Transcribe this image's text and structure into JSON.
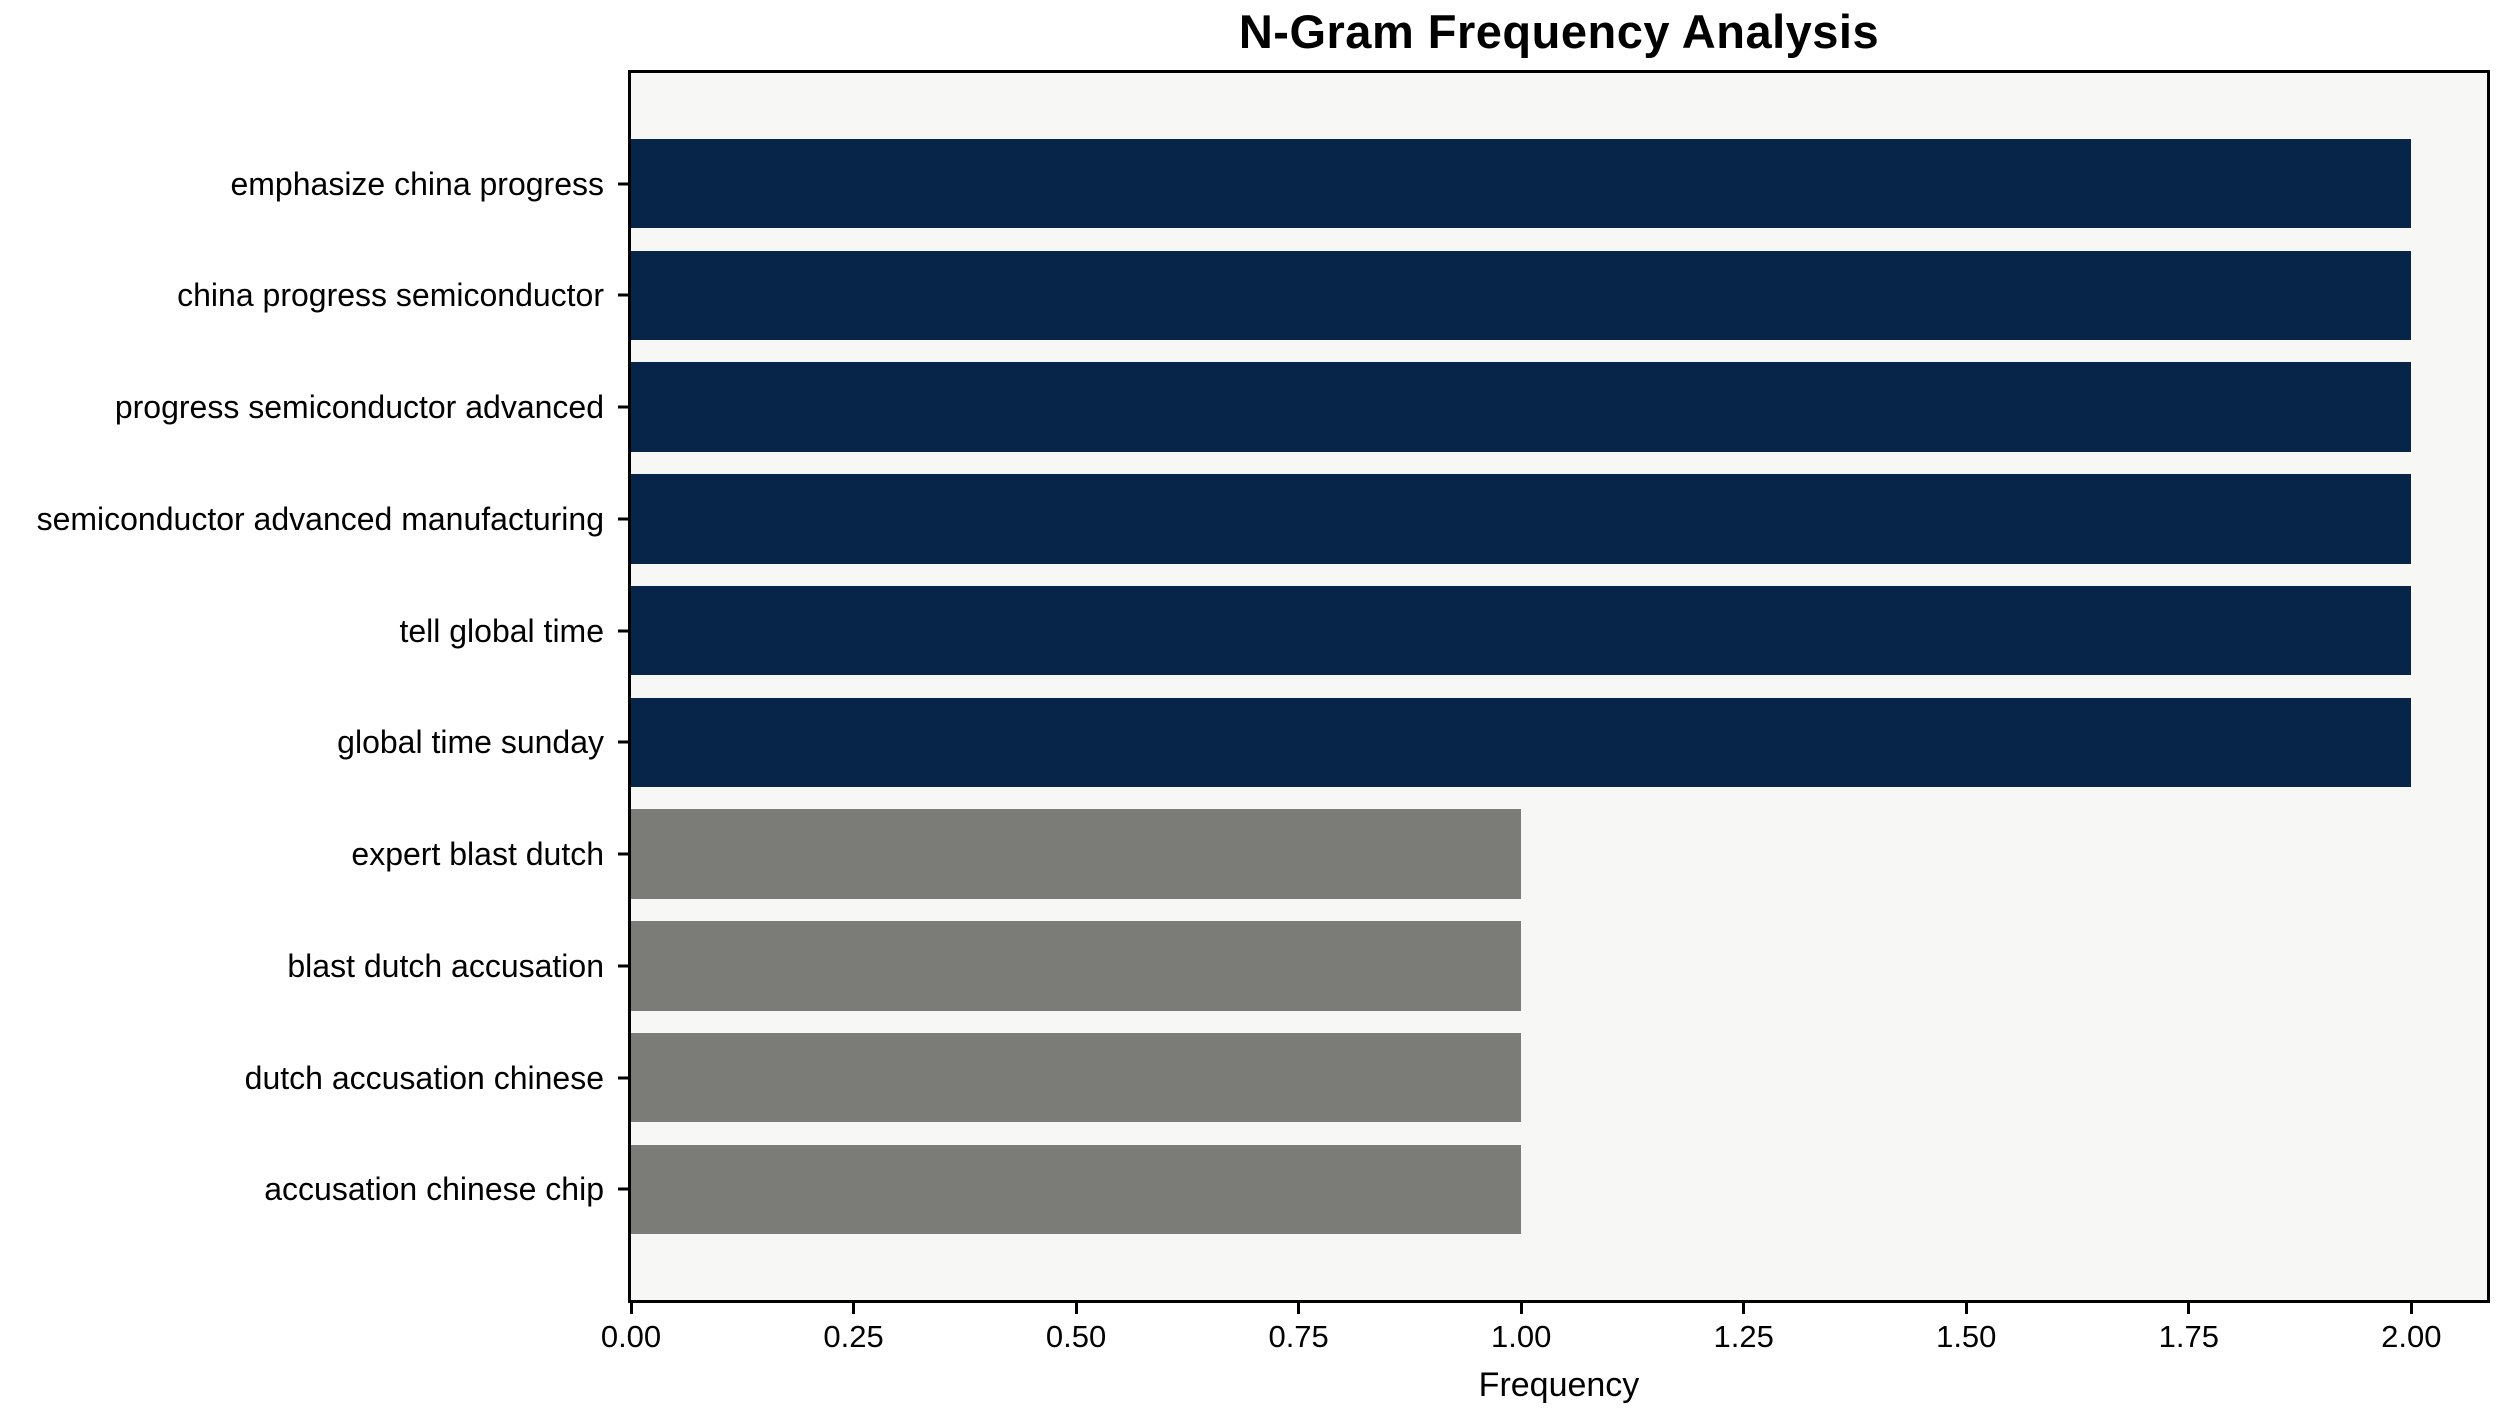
{
  "chart_data": {
    "type": "bar",
    "orientation": "horizontal",
    "title": "N-Gram Frequency Analysis",
    "xlabel": "Frequency",
    "ylabel": "",
    "categories": [
      "emphasize china progress",
      "china progress semiconductor",
      "progress semiconductor advanced",
      "semiconductor advanced manufacturing",
      "tell global time",
      "global time sunday",
      "expert blast dutch",
      "blast dutch accusation",
      "dutch accusation chinese",
      "accusation chinese chip"
    ],
    "values": [
      2,
      2,
      2,
      2,
      2,
      2,
      1,
      1,
      1,
      1
    ],
    "bar_colors": [
      "#072548",
      "#072548",
      "#072548",
      "#072548",
      "#072548",
      "#072548",
      "#7b7b78",
      "#7b7b78",
      "#7b7b78",
      "#7b7b78"
    ],
    "xlim": [
      0,
      2.085
    ],
    "xtick_values": [
      0,
      0.25,
      0.5,
      0.75,
      1.0,
      1.25,
      1.5,
      1.75,
      2.0
    ],
    "xtick_labels": [
      "0.00",
      "0.25",
      "0.50",
      "0.75",
      "1.00",
      "1.25",
      "1.50",
      "1.75",
      "2.00"
    ],
    "grid": false,
    "legend": false,
    "plot_background": "#f7f7f6",
    "figure_background": "#ffffff",
    "spine_color": "#000000"
  }
}
